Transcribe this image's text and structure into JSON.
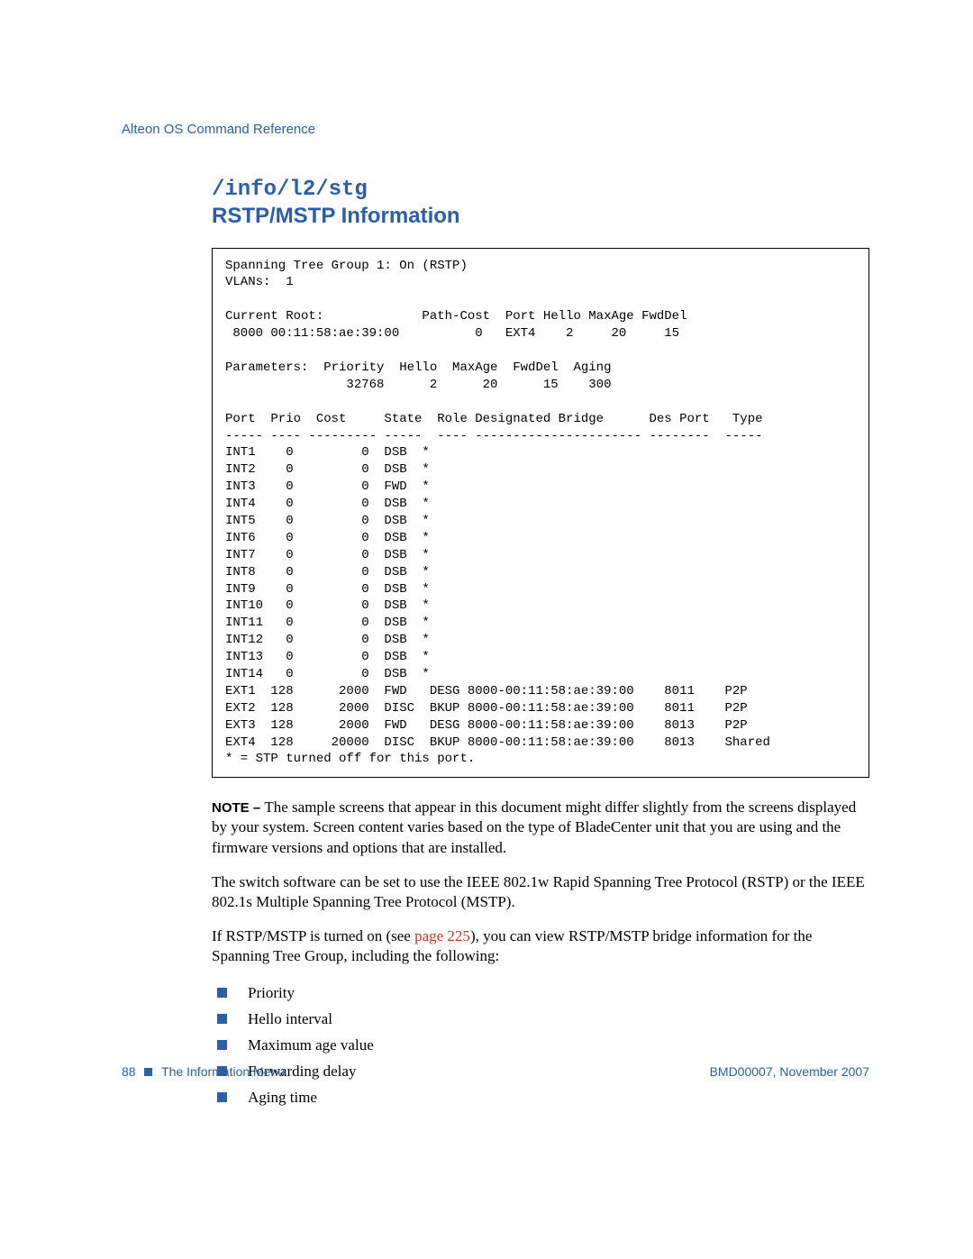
{
  "header": {
    "doc_title": "Alteon OS Command Reference"
  },
  "section": {
    "cmd": "/info/l2/stg",
    "title": "RSTP/MSTP Information"
  },
  "terminal": {
    "lines": [
      "Spanning Tree Group 1: On (RSTP)",
      "VLANs:  1",
      "",
      "Current Root:             Path-Cost  Port Hello MaxAge FwdDel",
      " 8000 00:11:58:ae:39:00          0   EXT4    2     20     15",
      "",
      "Parameters:  Priority  Hello  MaxAge  FwdDel  Aging",
      "                32768      2      20      15    300",
      "",
      "Port  Prio  Cost     State  Role Designated Bridge      Des Port   Type",
      "----- ---- --------- -----  ---- ---------------------- --------  -----",
      "INT1    0         0  DSB  *",
      "INT2    0         0  DSB  *",
      "INT3    0         0  FWD  *",
      "INT4    0         0  DSB  *",
      "INT5    0         0  DSB  *",
      "INT6    0         0  DSB  *",
      "INT7    0         0  DSB  *",
      "INT8    0         0  DSB  *",
      "INT9    0         0  DSB  *",
      "INT10   0         0  DSB  *",
      "INT11   0         0  DSB  *",
      "INT12   0         0  DSB  *",
      "INT13   0         0  DSB  *",
      "INT14   0         0  DSB  *",
      "EXT1  128      2000  FWD   DESG 8000-00:11:58:ae:39:00    8011    P2P",
      "EXT2  128      2000  DISC  BKUP 8000-00:11:58:ae:39:00    8011    P2P",
      "EXT3  128      2000  FWD   DESG 8000-00:11:58:ae:39:00    8013    P2P",
      "EXT4  128     20000  DISC  BKUP 8000-00:11:58:ae:39:00    8013    Shared",
      "* = STP turned off for this port."
    ]
  },
  "paragraphs": {
    "note_label": "NOTE – ",
    "note_body": "The sample screens that appear in this document might differ slightly from the screens displayed by your system. Screen content varies based on the type of BladeCenter unit that you are using and the firmware versions and options that are installed.",
    "p1": "The switch software can be set to use the IEEE 802.1w Rapid Spanning Tree Protocol (RSTP) or the IEEE 802.1s Multiple Spanning Tree Protocol (MSTP).",
    "p2_pre": "If RSTP/MSTP is turned on (see ",
    "p2_link": "page 225",
    "p2_post": "), you can view RSTP/MSTP bridge information for the Spanning Tree Group, including the following:"
  },
  "bullets": [
    "Priority",
    "Hello interval",
    "Maximum age value",
    "Forwarding delay",
    "Aging time"
  ],
  "footer": {
    "page_num": "88",
    "chapter": "The Information Menu",
    "doc_id": "BMD00007, November 2007"
  }
}
